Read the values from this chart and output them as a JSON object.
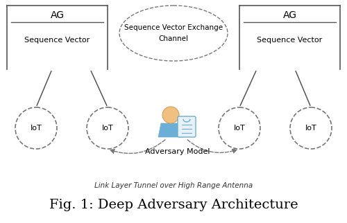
{
  "title": "Fig. 1: Deep Adversary Architecture",
  "subtitle": "Link Layer Tunnel over High Range Antenna",
  "bg_color": "#ffffff",
  "ag_left_label": "AG",
  "ag_right_label": "AG",
  "seq_vec_label": "Sequence Vector",
  "seq_vec_exchange_line1": "Sequence Vector Exchange",
  "seq_vec_exchange_line2": "Channel",
  "adversary_label": "Adversary Model",
  "iot_label": "IoT",
  "line_color": "#555555",
  "dashed_color": "#777777",
  "figure_blue": "#6baed6",
  "figure_blue2": "#9ecae1",
  "figure_skin": "#f0c080",
  "figure_white": "#e8f0f8"
}
